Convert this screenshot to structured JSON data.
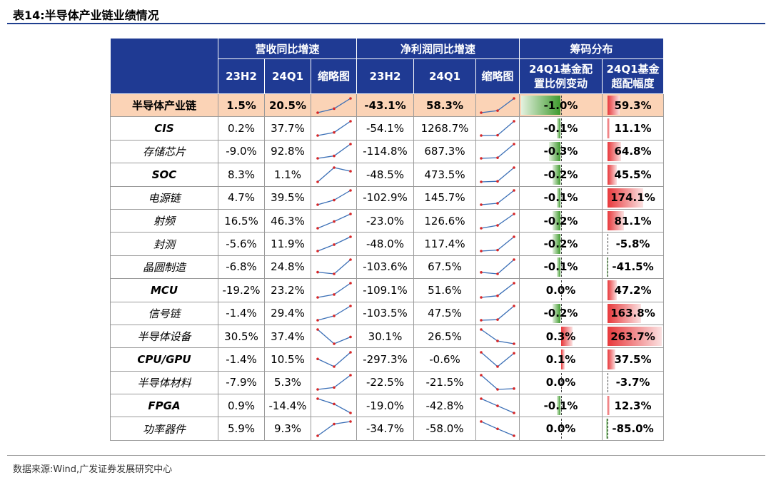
{
  "title": "表14:半导体产业链业绩情况",
  "source": "数据来源:Wind,广发证券发展研究中心",
  "header": {
    "group_rev": "营收同比增速",
    "group_profit": "净利润同比增速",
    "group_chip": "筹码分布",
    "col_23h2": "23H2",
    "col_24q1": "24Q1",
    "col_spark": "缩略图",
    "col_fund_1": "24Q1基金配",
    "col_fund_2": "置比例变动",
    "col_over_1": "24Q1基金",
    "col_over_2": "超配幅度"
  },
  "colors": {
    "header_bg": "#1f3a93",
    "highlight_row": "#fbd3b6",
    "positive": "#e8383b",
    "negative": "#3f9a2e",
    "sparkline": "#3b6fb6",
    "spark_marker": "#d62728"
  },
  "rows": [
    {
      "name": "半导体产业链",
      "cn": true,
      "highlight": true,
      "rev_23h2": "1.5%",
      "rev_24q1": "20.5%",
      "rev_spark": [
        -6,
        1.5,
        20.5
      ],
      "np_23h2": "-43.1%",
      "np_24q1": "58.3%",
      "np_spark": [
        -60,
        -43.1,
        58.3
      ],
      "fund_change": "-1.0%",
      "fund_change_v": -1.0,
      "overweight": "59.3%",
      "overweight_v": 59.3
    },
    {
      "name": "CIS",
      "cn": false,
      "rev_23h2": "0.2%",
      "rev_24q1": "37.7%",
      "rev_spark": [
        -10,
        0.2,
        37.7
      ],
      "np_23h2": "-54.1%",
      "np_24q1": "1268.7%",
      "np_spark": [
        -80,
        -54.1,
        1268.7
      ],
      "fund_change": "-0.1%",
      "fund_change_v": -0.1,
      "overweight": "11.1%",
      "overweight_v": 11.1
    },
    {
      "name": "存储芯片",
      "cn": true,
      "rev_23h2": "-9.0%",
      "rev_24q1": "92.8%",
      "rev_spark": [
        -30,
        -9.0,
        92.8
      ],
      "np_23h2": "-114.8%",
      "np_24q1": "687.3%",
      "np_spark": [
        -150,
        -114.8,
        687.3
      ],
      "fund_change": "-0.3%",
      "fund_change_v": -0.3,
      "overweight": "64.8%",
      "overweight_v": 64.8
    },
    {
      "name": "SOC",
      "cn": false,
      "rev_23h2": "8.3%",
      "rev_24q1": "1.1%",
      "rev_spark": [
        -20,
        8.3,
        1.1
      ],
      "np_23h2": "-48.5%",
      "np_24q1": "473.5%",
      "np_spark": [
        -70,
        -48.5,
        473.5
      ],
      "fund_change": "-0.2%",
      "fund_change_v": -0.2,
      "overweight": "45.5%",
      "overweight_v": 45.5
    },
    {
      "name": "电源链",
      "cn": true,
      "rev_23h2": "4.7%",
      "rev_24q1": "39.5%",
      "rev_spark": [
        -12,
        4.7,
        39.5
      ],
      "np_23h2": "-102.9%",
      "np_24q1": "145.7%",
      "np_spark": [
        -130,
        -102.9,
        145.7
      ],
      "fund_change": "-0.1%",
      "fund_change_v": -0.1,
      "overweight": "174.1%",
      "overweight_v": 174.1
    },
    {
      "name": "射频",
      "cn": true,
      "rev_23h2": "16.5%",
      "rev_24q1": "46.3%",
      "rev_spark": [
        -10,
        16.5,
        46.3
      ],
      "np_23h2": "-23.0%",
      "np_24q1": "126.6%",
      "np_spark": [
        -60,
        -23.0,
        126.6
      ],
      "fund_change": "-0.2%",
      "fund_change_v": -0.2,
      "overweight": "81.1%",
      "overweight_v": 81.1
    },
    {
      "name": "封测",
      "cn": true,
      "rev_23h2": "-5.6%",
      "rev_24q1": "11.9%",
      "rev_spark": [
        -20,
        -5.6,
        11.9
      ],
      "np_23h2": "-48.0%",
      "np_24q1": "117.4%",
      "np_spark": [
        -60,
        -48.0,
        117.4
      ],
      "fund_change": "-0.2%",
      "fund_change_v": -0.2,
      "overweight": "-5.8%",
      "overweight_v": -5.8
    },
    {
      "name": "晶圆制造",
      "cn": true,
      "rev_23h2": "-6.8%",
      "rev_24q1": "24.8%",
      "rev_spark": [
        -3,
        -6.8,
        24.8
      ],
      "np_23h2": "-103.6%",
      "np_24q1": "67.5%",
      "np_spark": [
        -85,
        -103.6,
        67.5
      ],
      "fund_change": "-0.1%",
      "fund_change_v": -0.1,
      "overweight": "-41.5%",
      "overweight_v": -41.5
    },
    {
      "name": "MCU",
      "cn": false,
      "rev_23h2": "-19.2%",
      "rev_24q1": "23.2%",
      "rev_spark": [
        -30,
        -19.2,
        23.2
      ],
      "np_23h2": "-109.1%",
      "np_24q1": "51.6%",
      "np_spark": [
        -130,
        -109.1,
        51.6
      ],
      "fund_change": "0.0%",
      "fund_change_v": 0.0,
      "overweight": "47.2%",
      "overweight_v": 47.2
    },
    {
      "name": "信号链",
      "cn": true,
      "rev_23h2": "-1.4%",
      "rev_24q1": "29.4%",
      "rev_spark": [
        -15,
        -1.4,
        29.4
      ],
      "np_23h2": "-103.5%",
      "np_24q1": "47.5%",
      "np_spark": [
        -110,
        -103.5,
        47.5
      ],
      "fund_change": "-0.2%",
      "fund_change_v": -0.2,
      "overweight": "163.8%",
      "overweight_v": 163.8
    },
    {
      "name": "半导体设备",
      "cn": true,
      "rev_23h2": "30.5%",
      "rev_24q1": "37.4%",
      "rev_spark": [
        45,
        30.5,
        37.4
      ],
      "np_23h2": "30.1%",
      "np_24q1": "26.5%",
      "np_spark": [
        45,
        30.1,
        26.5
      ],
      "fund_change": "0.3%",
      "fund_change_v": 0.3,
      "overweight": "263.7%",
      "overweight_v": 263.7
    },
    {
      "name": "CPU/GPU",
      "cn": false,
      "rev_23h2": "-1.4%",
      "rev_24q1": "10.5%",
      "rev_spark": [
        5,
        -1.4,
        10.5
      ],
      "np_23h2": "-297.3%",
      "np_24q1": "-0.6%",
      "np_spark": [
        20,
        -297.3,
        -0.6
      ],
      "fund_change": "0.1%",
      "fund_change_v": 0.1,
      "overweight": "37.5%",
      "overweight_v": 37.5
    },
    {
      "name": "半导体材料",
      "cn": true,
      "rev_23h2": "-7.9%",
      "rev_24q1": "5.3%",
      "rev_spark": [
        -10,
        -7.9,
        5.3
      ],
      "np_23h2": "-22.5%",
      "np_24q1": "-21.5%",
      "np_spark": [
        -5,
        -22.5,
        -21.5
      ],
      "fund_change": "0.0%",
      "fund_change_v": 0.0,
      "overweight": "-3.7%",
      "overweight_v": -3.7
    },
    {
      "name": "FPGA",
      "cn": false,
      "rev_23h2": "0.9%",
      "rev_24q1": "-14.4%",
      "rev_spark": [
        10,
        0.9,
        -14.4
      ],
      "np_23h2": "-19.0%",
      "np_24q1": "-42.8%",
      "np_spark": [
        5,
        -19.0,
        -42.8
      ],
      "fund_change": "-0.1%",
      "fund_change_v": -0.1,
      "overweight": "12.3%",
      "overweight_v": 12.3
    },
    {
      "name": "功率器件",
      "cn": true,
      "rev_23h2": "5.9%",
      "rev_24q1": "9.3%",
      "rev_spark": [
        -10,
        5.9,
        9.3
      ],
      "np_23h2": "-34.7%",
      "np_24q1": "-58.0%",
      "np_spark": [
        -10,
        -34.7,
        -58.0
      ],
      "fund_change": "0.0%",
      "fund_change_v": 0.0,
      "overweight": "-85.0%",
      "overweight_v": -85.0
    }
  ]
}
